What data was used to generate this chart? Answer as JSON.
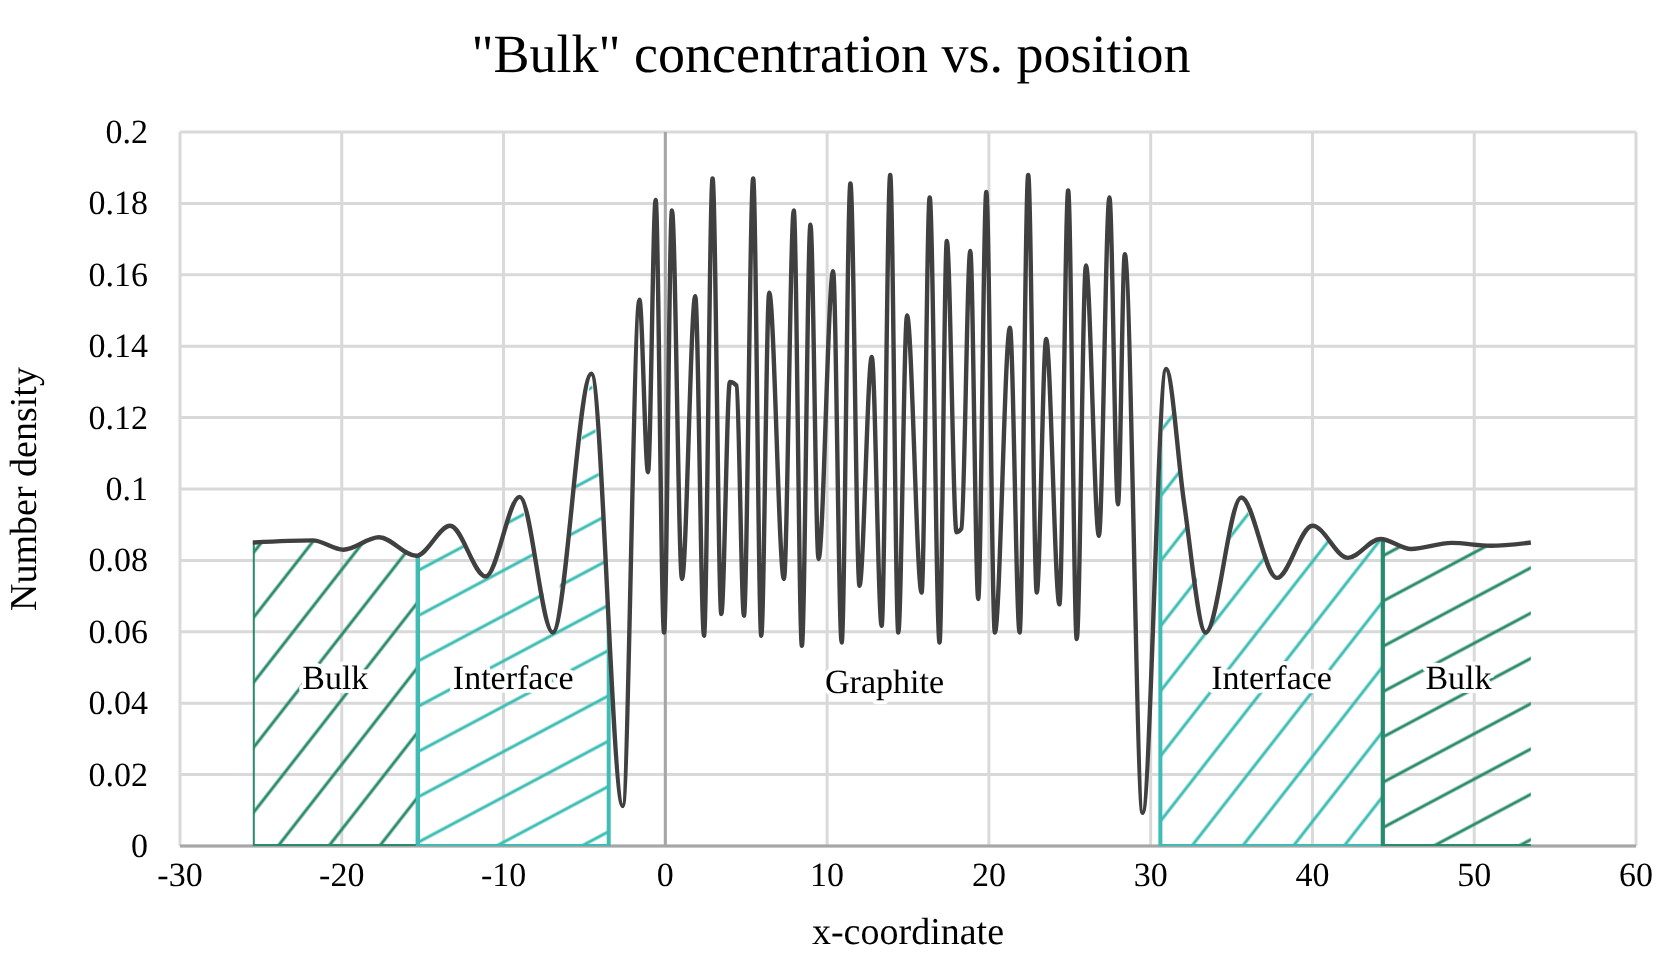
{
  "chart_data": {
    "type": "line",
    "title": "\"Bulk\" concentration vs. position",
    "xlabel": "x-coordinate",
    "ylabel": "Number density",
    "xlim": [
      -30,
      60
    ],
    "xticks": [
      -30,
      -20,
      -10,
      0,
      10,
      20,
      30,
      40,
      50,
      60
    ],
    "ylim": [
      0,
      0.2
    ],
    "yticks": [
      0,
      {
        "value": 0.02,
        "label": "0.02"
      },
      {
        "value": 0.04,
        "label": "0.04"
      },
      {
        "value": 0.06,
        "label": "0.06"
      },
      {
        "value": 0.08,
        "label": "0.08"
      },
      {
        "value": 0.1,
        "label": "0.1"
      },
      {
        "value": 0.12,
        "label": "0.12"
      },
      {
        "value": 0.14,
        "label": "0.14"
      },
      {
        "value": 0.16,
        "label": "0.16"
      },
      {
        "value": 0.18,
        "label": "0.18"
      },
      {
        "value": 0.2,
        "label": "0.2"
      }
    ],
    "grid": true,
    "marker": "none",
    "line_style": "solid",
    "x": [
      -25.5,
      -21.8,
      -19.9,
      -17.7,
      -15.4,
      -13.3,
      -11.1,
      -9.0,
      -6.96,
      -4.57,
      -2.63,
      -1.6,
      -1.07,
      -0.6,
      -0.08,
      0.41,
      1.03,
      1.85,
      2.39,
      2.92,
      3.46,
      3.99,
      4.4,
      4.86,
      5.43,
      5.93,
      6.42,
      7.33,
      7.94,
      8.44,
      8.97,
      9.47,
      10.37,
      10.9,
      11.44,
      12.0,
      12.76,
      13.37,
      13.9,
      14.4,
      14.94,
      15.84,
      16.34,
      16.95,
      17.4,
      18.0,
      18.3,
      18.85,
      19.34,
      19.84,
      20.37,
      21.3,
      21.9,
      22.43,
      22.96,
      23.54,
      24.36,
      24.9,
      25.43,
      26.0,
      26.8,
      27.45,
      27.98,
      28.4,
      29.5,
      30.95,
      32.06,
      33.4,
      35.6,
      37.8,
      40.0,
      42.2,
      44.2,
      46.1,
      48.6,
      51.0,
      53.5
    ],
    "series": [
      {
        "color": "#404040",
        "values": [
          0.085,
          0.0856,
          0.083,
          0.0865,
          0.0813,
          0.0897,
          0.0755,
          0.0978,
          0.0598,
          0.1323,
          0.0112,
          0.153,
          0.1047,
          0.181,
          0.0598,
          0.178,
          0.0748,
          0.154,
          0.0589,
          0.187,
          0.065,
          0.13,
          0.129,
          0.0645,
          0.187,
          0.0589,
          0.155,
          0.0748,
          0.178,
          0.0561,
          0.174,
          0.0804,
          0.161,
          0.057,
          0.1856,
          0.0729,
          0.137,
          0.0617,
          0.188,
          0.0598,
          0.1486,
          0.071,
          0.1817,
          0.057,
          0.1695,
          0.0879,
          0.0889,
          0.1667,
          0.0692,
          0.1832,
          0.0598,
          0.1452,
          0.0598,
          0.188,
          0.071,
          0.142,
          0.0677,
          0.1836,
          0.058,
          0.1626,
          0.0869,
          0.1817,
          0.0957,
          0.1658,
          0.0093,
          0.1336,
          0.0963,
          0.0598,
          0.0976,
          0.0751,
          0.0897,
          0.0807,
          0.086,
          0.0832,
          0.0849,
          0.0841,
          0.085
        ]
      }
    ],
    "bands": [
      {
        "axis": "x",
        "from": -25.5,
        "to": -15.3,
        "label": "Bulk",
        "color": "#2a8a6c"
      },
      {
        "axis": "x",
        "from": -15.3,
        "to": -3.5,
        "label": "Interface",
        "color": "#3dbdb3"
      },
      {
        "axis": "x",
        "from": 30.6,
        "to": 44.35,
        "label": "Interface",
        "color": "#3dbdb3"
      },
      {
        "axis": "x",
        "from": 44.35,
        "to": 53.7,
        "label": "Bulk",
        "color": "#2a8a6c"
      }
    ],
    "annotations": [
      "Graphite"
    ]
  }
}
